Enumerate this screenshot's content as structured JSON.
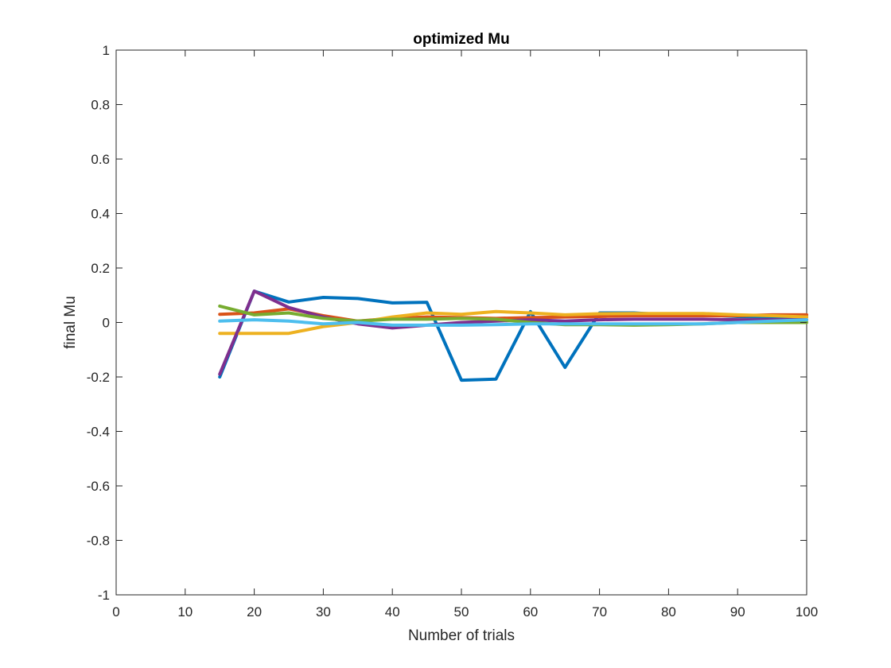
{
  "chart_data": {
    "type": "line",
    "title": "optimized Mu",
    "xlabel": "Number of trials",
    "ylabel": "final Mu",
    "xlim": [
      0,
      100
    ],
    "ylim": [
      -1,
      1
    ],
    "xticks": [
      0,
      10,
      20,
      30,
      40,
      50,
      60,
      70,
      80,
      90,
      100
    ],
    "yticks": [
      -1,
      -0.8,
      -0.6,
      -0.4,
      -0.2,
      0,
      0.2,
      0.4,
      0.6,
      0.8,
      1
    ],
    "xtick_labels": [
      "0",
      "10",
      "20",
      "30",
      "40",
      "50",
      "60",
      "70",
      "80",
      "90",
      "100"
    ],
    "ytick_labels": [
      "-1",
      "-0.8",
      "-0.6",
      "-0.4",
      "-0.2",
      "0",
      "0.2",
      "0.4",
      "0.6",
      "0.8",
      "1"
    ],
    "grid": false,
    "legend": "none",
    "x": [
      15,
      20,
      25,
      30,
      35,
      40,
      45,
      50,
      55,
      60,
      65,
      70,
      75,
      80,
      85,
      90,
      95,
      100
    ],
    "series": [
      {
        "color": "#0072BD",
        "values": [
          -0.2,
          0.115,
          0.075,
          0.092,
          0.088,
          0.072,
          0.074,
          -0.212,
          -0.208,
          0.04,
          -0.165,
          0.035,
          0.035,
          0.028,
          0.028,
          0.022,
          0.02,
          0.02
        ]
      },
      {
        "color": "#D95319",
        "values": [
          0.03,
          0.035,
          0.05,
          0.025,
          0.005,
          0.015,
          0.02,
          0.018,
          0.015,
          0.018,
          0.02,
          0.022,
          0.025,
          0.025,
          0.025,
          0.025,
          0.028,
          0.028
        ]
      },
      {
        "color": "#EDB120",
        "values": [
          -0.04,
          -0.04,
          -0.04,
          -0.015,
          0.0,
          0.02,
          0.035,
          0.03,
          0.04,
          0.035,
          0.028,
          0.032,
          0.033,
          0.033,
          0.033,
          0.028,
          0.025,
          0.02
        ]
      },
      {
        "color": "#7E2F8E",
        "values": [
          -0.19,
          0.115,
          0.055,
          0.02,
          -0.005,
          -0.02,
          -0.01,
          0.0,
          0.005,
          0.01,
          0.005,
          0.01,
          0.012,
          0.012,
          0.012,
          0.01,
          0.01,
          0.01
        ]
      },
      {
        "color": "#77AC30",
        "values": [
          0.06,
          0.028,
          0.035,
          0.015,
          0.005,
          0.012,
          0.012,
          0.015,
          0.012,
          0.0,
          -0.008,
          -0.008,
          -0.01,
          -0.008,
          -0.005,
          0.0,
          0.0,
          0.0
        ]
      },
      {
        "color": "#4DBEEE",
        "values": [
          0.005,
          0.01,
          0.005,
          -0.005,
          0.0,
          -0.01,
          -0.01,
          -0.01,
          -0.008,
          -0.005,
          -0.005,
          -0.005,
          -0.005,
          -0.005,
          -0.005,
          0.0,
          0.005,
          0.01
        ]
      }
    ]
  }
}
